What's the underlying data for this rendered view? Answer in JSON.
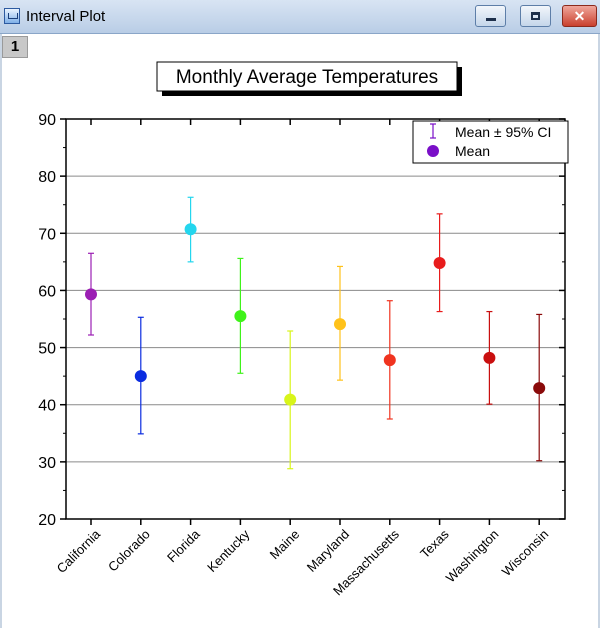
{
  "window": {
    "title": "Interval Plot",
    "layer_number": "1",
    "buttons": {
      "minimize": "minimize",
      "maximize": "maximize",
      "close": "✕"
    }
  },
  "chart_data": {
    "type": "scatter",
    "title": "Monthly Average Temperatures",
    "xlabel": "",
    "ylabel": "",
    "ylim": [
      20,
      90
    ],
    "yticks": [
      20,
      30,
      40,
      50,
      60,
      70,
      80,
      90
    ],
    "grid": true,
    "legend_position": "top-right",
    "legend": [
      "Mean ± 95% CI",
      "Mean"
    ],
    "categories": [
      "California",
      "Colorado",
      "Florida",
      "Kentucky",
      "Maine",
      "Maryland",
      "Massachusetts",
      "Texas",
      "Washington",
      "Wisconsin"
    ],
    "series": [
      {
        "name": "Mean",
        "values": [
          59.3,
          45.0,
          70.7,
          55.5,
          40.9,
          54.1,
          47.8,
          64.8,
          48.2,
          42.9
        ]
      },
      {
        "name": "CI upper",
        "values": [
          66.5,
          55.3,
          76.3,
          65.6,
          52.9,
          64.2,
          58.2,
          73.4,
          56.3,
          55.8
        ]
      },
      {
        "name": "CI lower",
        "values": [
          52.2,
          34.9,
          65.0,
          45.5,
          28.8,
          44.3,
          37.5,
          56.3,
          40.1,
          30.2
        ]
      }
    ],
    "colors": [
      "#9b1fb3",
      "#0a2ce0",
      "#24d6ee",
      "#3ff21a",
      "#d8f51a",
      "#ffc21a",
      "#f0331f",
      "#e81c1c",
      "#c90f0f",
      "#8a0a0a"
    ],
    "legend_color": "#7a0fc8"
  }
}
